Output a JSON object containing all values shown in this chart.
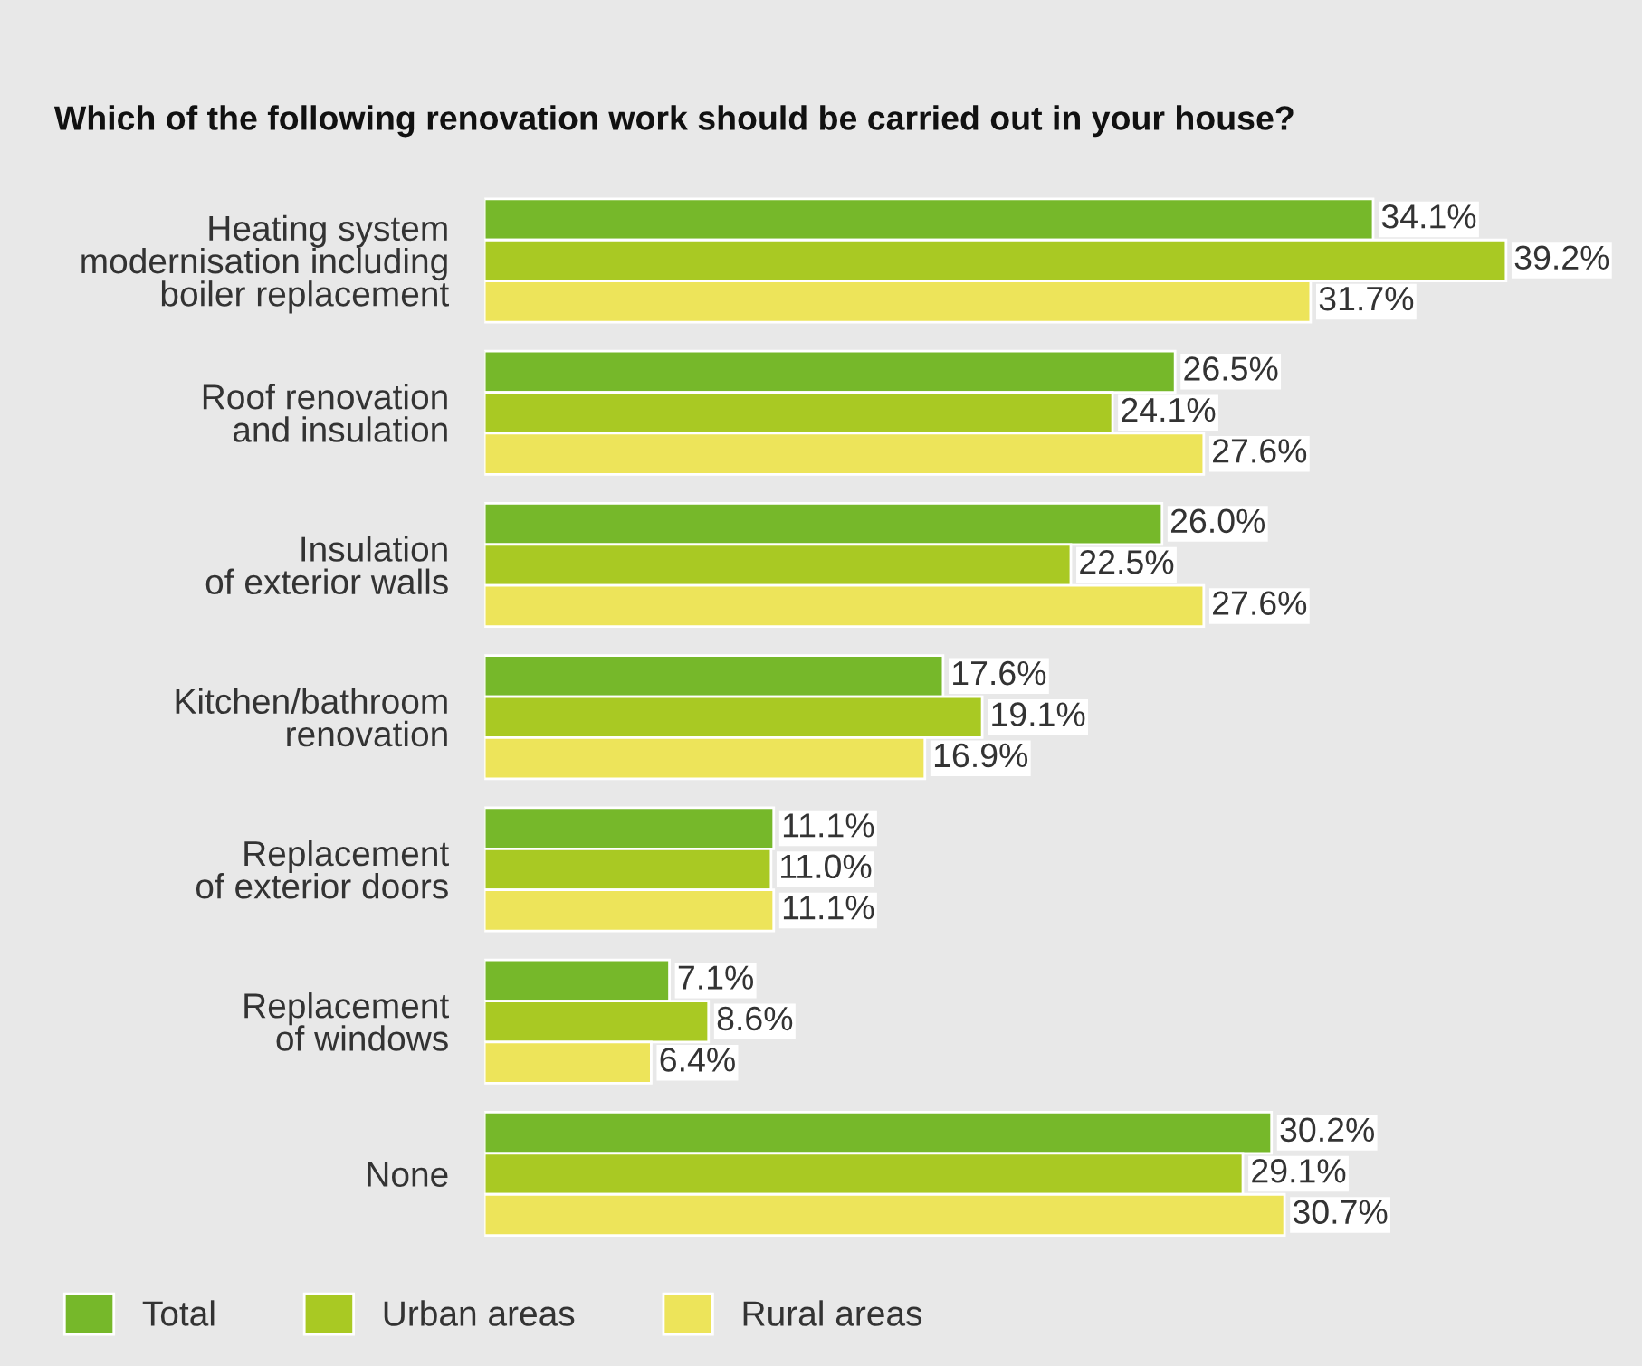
{
  "chart_data": {
    "type": "bar",
    "orientation": "horizontal",
    "title": "Which of the following renovation work should be carried out in your house?",
    "categories": [
      "Heating system\nmodernisation including\nboiler replacement",
      "Roof renovation\nand insulation",
      "Insulation\nof exterior walls",
      "Kitchen/bathroom\nrenovation",
      "Replacement\nof exterior doors",
      "Replacement\nof windows",
      "None"
    ],
    "series": [
      {
        "name": "Total",
        "color": "#76b82a",
        "values": [
          34.1,
          26.5,
          26.0,
          17.6,
          11.1,
          7.1,
          30.2
        ],
        "value_labels": [
          "34.1%",
          "26.5%",
          "26.0%",
          "17.6%",
          "11.1%",
          "7.1%",
          "30.2%"
        ]
      },
      {
        "name": "Urban areas",
        "color": "#a9c923",
        "values": [
          39.2,
          24.1,
          22.5,
          19.1,
          11.0,
          8.6,
          29.1
        ],
        "value_labels": [
          "39.2%",
          "24.1%",
          "22.5%",
          "19.1%",
          "11.0%",
          "8.6%",
          "29.1%"
        ]
      },
      {
        "name": "Rural areas",
        "color": "#ede45a",
        "values": [
          31.7,
          27.6,
          27.6,
          16.9,
          11.1,
          6.4,
          30.7
        ],
        "value_labels": [
          "31.7%",
          "27.6%",
          "27.6%",
          "16.9%",
          "11.1%",
          "6.4%",
          "30.7%"
        ]
      }
    ],
    "legend": "bottom left",
    "grid": false
  }
}
